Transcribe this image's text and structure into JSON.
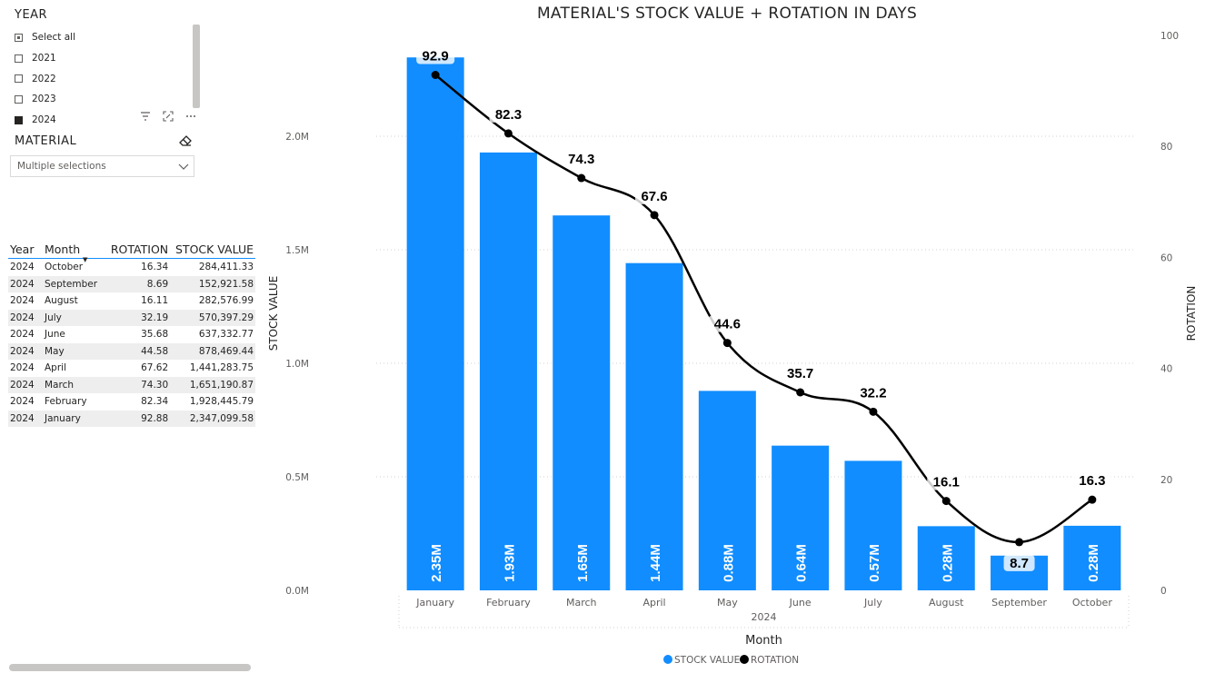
{
  "year_slicer": {
    "title": "YEAR",
    "items": [
      {
        "label": "Select all",
        "state": "partial"
      },
      {
        "label": "2021",
        "state": "unchecked"
      },
      {
        "label": "2022",
        "state": "unchecked"
      },
      {
        "label": "2023",
        "state": "unchecked"
      },
      {
        "label": "2024",
        "state": "checked"
      }
    ],
    "icons": [
      "filter-icon",
      "focus-mode-icon",
      "more-options-icon"
    ]
  },
  "material_slicer": {
    "title": "MATERIAL",
    "selected": "Multiple selections"
  },
  "table": {
    "headers": [
      "Year",
      "Month",
      "ROTATION",
      "STOCK VALUE"
    ],
    "rows": [
      [
        "2024",
        "October",
        "16.34",
        "284,411.33"
      ],
      [
        "2024",
        "September",
        "8.69",
        "152,921.58"
      ],
      [
        "2024",
        "August",
        "16.11",
        "282,576.99"
      ],
      [
        "2024",
        "July",
        "32.19",
        "570,397.29"
      ],
      [
        "2024",
        "June",
        "35.68",
        "637,332.77"
      ],
      [
        "2024",
        "May",
        "44.58",
        "878,469.44"
      ],
      [
        "2024",
        "April",
        "67.62",
        "1,441,283.75"
      ],
      [
        "2024",
        "March",
        "74.30",
        "1,651,190.87"
      ],
      [
        "2024",
        "February",
        "82.34",
        "1,928,445.79"
      ],
      [
        "2024",
        "January",
        "92.88",
        "2,347,099.58"
      ]
    ]
  },
  "chart_data": {
    "type": "bar",
    "title": "MATERIAL'S STOCK VALUE + ROTATION IN DAYS",
    "xlabel": "Month",
    "x_group_label": "2024",
    "ylabel": "STOCK VALUE",
    "y2label": "ROTATION",
    "categories": [
      "January",
      "February",
      "March",
      "April",
      "May",
      "June",
      "July",
      "August",
      "September",
      "October"
    ],
    "ylim": [
      0,
      2350000
    ],
    "y_ticks": [
      "0.0M",
      "0.5M",
      "1.0M",
      "1.5M",
      "2.0M"
    ],
    "y2lim": [
      0,
      100
    ],
    "y2_ticks": [
      "0",
      "20",
      "40",
      "60",
      "80",
      "100"
    ],
    "grid": true,
    "legend_position": "bottom",
    "series": [
      {
        "name": "STOCK VALUE",
        "kind": "bar",
        "color": "#118dff",
        "values": [
          2347099.58,
          1928445.79,
          1651190.87,
          1441283.75,
          878469.44,
          637332.77,
          570397.29,
          282576.99,
          152921.58,
          284411.33
        ],
        "labels": [
          "2.35M",
          "1.93M",
          "1.65M",
          "1.44M",
          "0.88M",
          "0.64M",
          "0.57M",
          "0.28M",
          "",
          "0.28M"
        ]
      },
      {
        "name": "ROTATION",
        "kind": "line",
        "axis": "secondary",
        "color": "#000000",
        "values": [
          92.88,
          82.34,
          74.3,
          67.62,
          44.58,
          35.68,
          32.19,
          16.11,
          8.69,
          16.34
        ],
        "labels": [
          "92.9",
          "82.3",
          "74.3",
          "67.6",
          "44.6",
          "35.7",
          "32.2",
          "16.1",
          "8.7",
          "16.3"
        ]
      }
    ]
  }
}
